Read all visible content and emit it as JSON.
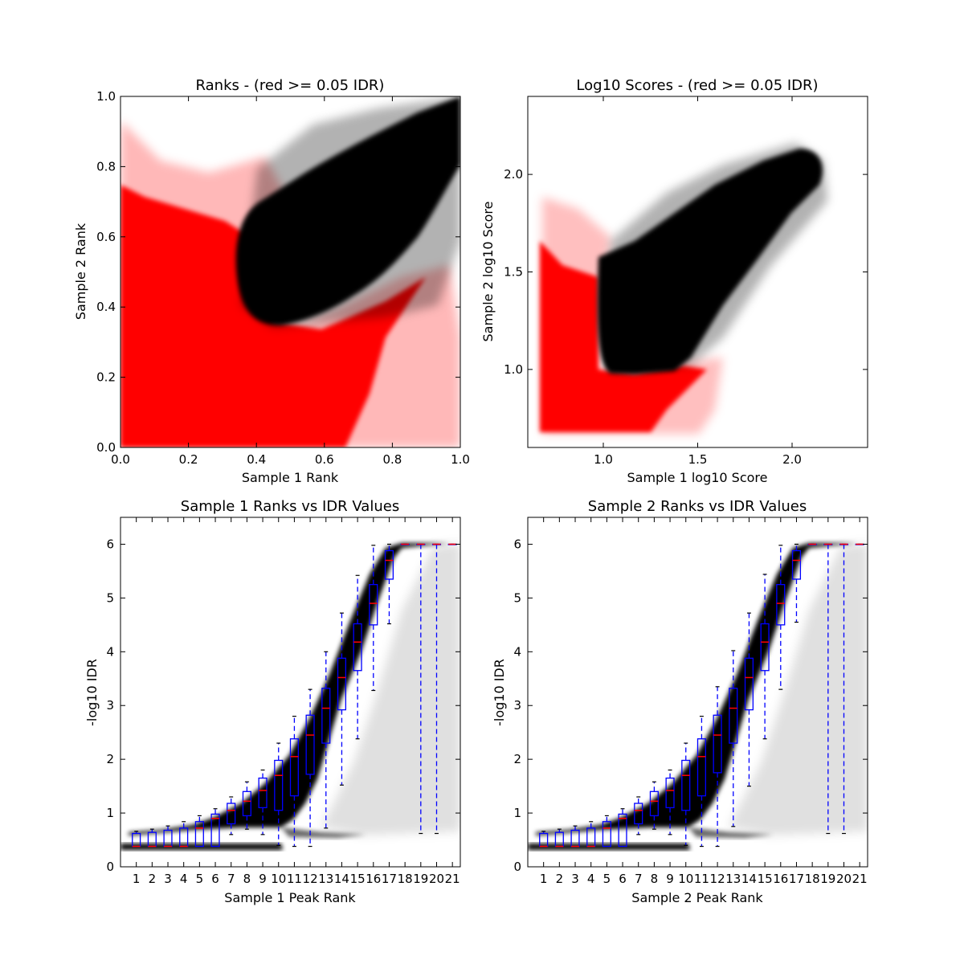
{
  "chart_data": [
    {
      "type": "scatter",
      "title": "Ranks - (red >= 0.05 IDR)",
      "xlabel": "Sample 1 Rank",
      "ylabel": "Sample 2 Rank",
      "xlim": [
        0.0,
        1.0
      ],
      "ylim": [
        0.0,
        1.0
      ],
      "xticks": [
        "0.0",
        "0.2",
        "0.4",
        "0.6",
        "0.8",
        "1.0"
      ],
      "yticks": [
        "0.0",
        "0.2",
        "0.4",
        "0.6",
        "0.8",
        "1.0"
      ],
      "series": [
        {
          "color": "#ff0000",
          "description_points": [
            [
              0.05,
              0.1
            ],
            [
              0.15,
              0.3
            ],
            [
              0.3,
              0.5
            ],
            [
              0.45,
              0.2
            ],
            [
              0.6,
              0.25
            ],
            [
              0.2,
              0.65
            ]
          ]
        },
        {
          "color": "#000000",
          "description_points": [
            [
              0.4,
              0.5
            ],
            [
              0.5,
              0.6
            ],
            [
              0.6,
              0.7
            ],
            [
              0.8,
              0.85
            ],
            [
              0.95,
              0.98
            ],
            [
              0.7,
              0.55
            ]
          ]
        }
      ]
    },
    {
      "type": "scatter",
      "title": "Log10 Scores - (red >= 0.05 IDR)",
      "xlabel": "Sample 1 log10 Score",
      "ylabel": "Sample 2 log10 Score",
      "xlim": [
        0.6,
        2.4
      ],
      "ylim": [
        0.6,
        2.4
      ],
      "xticks": [
        "1.0",
        "1.5",
        "2.0"
      ],
      "yticks": [
        "1.0",
        "1.5",
        "2.0"
      ],
      "series": [
        {
          "color": "#ff0000",
          "description_points": [
            [
              0.7,
              0.7
            ],
            [
              0.75,
              1.2
            ],
            [
              0.9,
              0.8
            ],
            [
              1.3,
              0.75
            ],
            [
              0.8,
              1.5
            ]
          ]
        },
        {
          "color": "#000000",
          "description_points": [
            [
              1.05,
              1.1
            ],
            [
              1.3,
              1.4
            ],
            [
              1.6,
              1.7
            ],
            [
              1.9,
              2.0
            ],
            [
              1.5,
              1.2
            ]
          ]
        }
      ]
    },
    {
      "type": "box",
      "title": "Sample 1 Ranks vs IDR Values",
      "xlabel": "Sample 1 Peak Rank",
      "ylabel": "-log10 IDR",
      "ylim": [
        0,
        6.5
      ],
      "yticks": [
        "0",
        "1",
        "2",
        "3",
        "4",
        "5",
        "6"
      ],
      "categories": [
        "1",
        "2",
        "3",
        "4",
        "5",
        "6",
        "7",
        "8",
        "9",
        "10",
        "11",
        "12",
        "13",
        "14",
        "15",
        "16",
        "17",
        "18",
        "19",
        "20",
        "21"
      ],
      "boxes": [
        {
          "q1": 0.38,
          "median": 0.38,
          "q3": 0.62,
          "whisker_low": 0.38,
          "whisker_high": 0.66
        },
        {
          "q1": 0.38,
          "median": 0.38,
          "q3": 0.64,
          "whisker_low": 0.38,
          "whisker_high": 0.7
        },
        {
          "q1": 0.38,
          "median": 0.38,
          "q3": 0.68,
          "whisker_low": 0.38,
          "whisker_high": 0.76
        },
        {
          "q1": 0.38,
          "median": 0.38,
          "q3": 0.72,
          "whisker_low": 0.38,
          "whisker_high": 0.84
        },
        {
          "q1": 0.38,
          "median": 0.72,
          "q3": 0.84,
          "whisker_low": 0.38,
          "whisker_high": 0.95
        },
        {
          "q1": 0.38,
          "median": 0.9,
          "q3": 0.98,
          "whisker_low": 0.38,
          "whisker_high": 1.08
        },
        {
          "q1": 0.8,
          "median": 1.05,
          "q3": 1.18,
          "whisker_low": 0.6,
          "whisker_high": 1.3
        },
        {
          "q1": 0.95,
          "median": 1.22,
          "q3": 1.4,
          "whisker_low": 0.7,
          "whisker_high": 1.58
        },
        {
          "q1": 1.1,
          "median": 1.42,
          "q3": 1.65,
          "whisker_low": 0.6,
          "whisker_high": 1.8
        },
        {
          "q1": 1.05,
          "median": 1.7,
          "q3": 1.98,
          "whisker_low": 0.4,
          "whisker_high": 2.3
        },
        {
          "q1": 1.32,
          "median": 2.05,
          "q3": 2.38,
          "whisker_low": 0.38,
          "whisker_high": 2.8
        },
        {
          "q1": 1.72,
          "median": 2.45,
          "q3": 2.82,
          "whisker_low": 0.38,
          "whisker_high": 3.3
        },
        {
          "q1": 2.3,
          "median": 2.95,
          "q3": 3.32,
          "whisker_low": 0.72,
          "whisker_high": 4.0
        },
        {
          "q1": 2.92,
          "median": 3.52,
          "q3": 3.88,
          "whisker_low": 1.52,
          "whisker_high": 4.72
        },
        {
          "q1": 3.65,
          "median": 4.18,
          "q3": 4.52,
          "whisker_low": 2.38,
          "whisker_high": 5.42
        },
        {
          "q1": 4.5,
          "median": 4.9,
          "q3": 5.25,
          "whisker_low": 3.28,
          "whisker_high": 5.98
        },
        {
          "q1": 5.35,
          "median": 5.7,
          "q3": 5.88,
          "whisker_low": 4.52,
          "whisker_high": 6.0
        },
        {
          "q1": 6.0,
          "median": 6.0,
          "q3": 6.0,
          "whisker_low": 6.0,
          "whisker_high": 6.0
        },
        {
          "q1": 6.0,
          "median": 6.0,
          "q3": 6.0,
          "whisker_low": 0.62,
          "whisker_high": 6.0
        },
        {
          "q1": 6.0,
          "median": 6.0,
          "q3": 6.0,
          "whisker_low": 0.62,
          "whisker_high": 6.0
        },
        {
          "q1": 6.0,
          "median": 6.0,
          "q3": 6.0,
          "whisker_low": 6.0,
          "whisker_high": 6.0
        }
      ]
    },
    {
      "type": "box",
      "title": "Sample 2 Ranks vs IDR Values",
      "xlabel": "Sample 2 Peak Rank",
      "ylabel": "-log10 IDR",
      "ylim": [
        0,
        6.5
      ],
      "yticks": [
        "0",
        "1",
        "2",
        "3",
        "4",
        "5",
        "6"
      ],
      "categories": [
        "1",
        "2",
        "3",
        "4",
        "5",
        "6",
        "7",
        "8",
        "9",
        "10",
        "11",
        "12",
        "13",
        "14",
        "15",
        "16",
        "17",
        "18",
        "19",
        "20",
        "21"
      ],
      "boxes": [
        {
          "q1": 0.38,
          "median": 0.38,
          "q3": 0.62,
          "whisker_low": 0.38,
          "whisker_high": 0.66
        },
        {
          "q1": 0.38,
          "median": 0.38,
          "q3": 0.64,
          "whisker_low": 0.38,
          "whisker_high": 0.7
        },
        {
          "q1": 0.38,
          "median": 0.38,
          "q3": 0.68,
          "whisker_low": 0.38,
          "whisker_high": 0.76
        },
        {
          "q1": 0.38,
          "median": 0.38,
          "q3": 0.72,
          "whisker_low": 0.38,
          "whisker_high": 0.84
        },
        {
          "q1": 0.38,
          "median": 0.72,
          "q3": 0.84,
          "whisker_low": 0.38,
          "whisker_high": 0.95
        },
        {
          "q1": 0.38,
          "median": 0.9,
          "q3": 0.98,
          "whisker_low": 0.38,
          "whisker_high": 1.08
        },
        {
          "q1": 0.8,
          "median": 1.05,
          "q3": 1.18,
          "whisker_low": 0.6,
          "whisker_high": 1.3
        },
        {
          "q1": 0.95,
          "median": 1.22,
          "q3": 1.4,
          "whisker_low": 0.7,
          "whisker_high": 1.58
        },
        {
          "q1": 1.1,
          "median": 1.42,
          "q3": 1.65,
          "whisker_low": 0.6,
          "whisker_high": 1.8
        },
        {
          "q1": 1.05,
          "median": 1.7,
          "q3": 1.98,
          "whisker_low": 0.4,
          "whisker_high": 2.3
        },
        {
          "q1": 1.32,
          "median": 2.05,
          "q3": 2.38,
          "whisker_low": 0.38,
          "whisker_high": 2.8
        },
        {
          "q1": 1.75,
          "median": 2.45,
          "q3": 2.82,
          "whisker_low": 0.38,
          "whisker_high": 3.35
        },
        {
          "q1": 2.3,
          "median": 2.95,
          "q3": 3.32,
          "whisker_low": 0.75,
          "whisker_high": 4.02
        },
        {
          "q1": 2.92,
          "median": 3.52,
          "q3": 3.88,
          "whisker_low": 1.5,
          "whisker_high": 4.72
        },
        {
          "q1": 3.65,
          "median": 4.18,
          "q3": 4.52,
          "whisker_low": 2.38,
          "whisker_high": 5.44
        },
        {
          "q1": 4.5,
          "median": 4.9,
          "q3": 5.25,
          "whisker_low": 3.3,
          "whisker_high": 5.98
        },
        {
          "q1": 5.35,
          "median": 5.7,
          "q3": 5.88,
          "whisker_low": 4.55,
          "whisker_high": 6.0
        },
        {
          "q1": 6.0,
          "median": 6.0,
          "q3": 6.0,
          "whisker_low": 6.0,
          "whisker_high": 6.0
        },
        {
          "q1": 6.0,
          "median": 6.0,
          "q3": 6.0,
          "whisker_low": 0.62,
          "whisker_high": 6.0
        },
        {
          "q1": 6.0,
          "median": 6.0,
          "q3": 6.0,
          "whisker_low": 0.62,
          "whisker_high": 6.0
        },
        {
          "q1": 6.0,
          "median": 6.0,
          "q3": 6.0,
          "whisker_low": 6.0,
          "whisker_high": 6.0
        }
      ]
    }
  ]
}
